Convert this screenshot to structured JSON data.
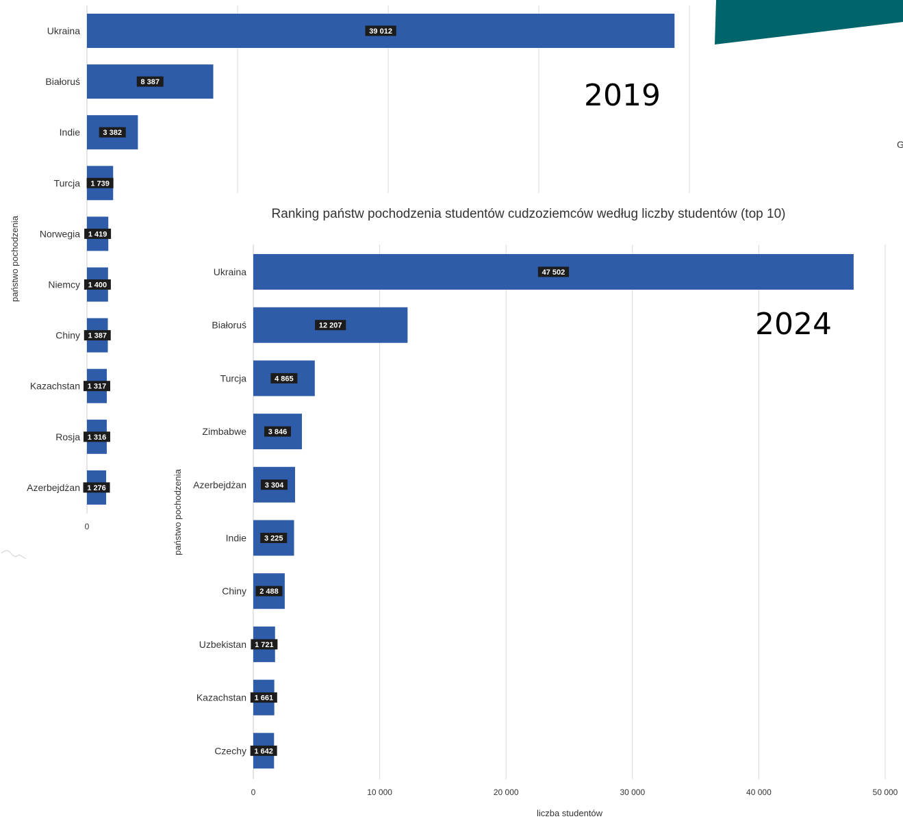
{
  "chart_data": [
    {
      "type": "bar",
      "orientation": "horizontal",
      "title": "",
      "year_label": "2019",
      "xlabel": "",
      "ylabel": "państwo pochodzenia",
      "categories": [
        "Ukraina",
        "Białoruś",
        "Indie",
        "Turcja",
        "Norwegia",
        "Niemcy",
        "Chiny",
        "Kazachstan",
        "Rosja",
        "Azerbejdżan"
      ],
      "values": [
        39012,
        8387,
        3382,
        1739,
        1419,
        1400,
        1387,
        1317,
        1316,
        1276
      ],
      "value_labels": [
        "39 012",
        "8 387",
        "3 382",
        "1 739",
        "1 419",
        "1 400",
        "1 387",
        "1 317",
        "1 316",
        "1 276"
      ],
      "xlim": [
        0,
        40000
      ],
      "x_ticks_visible": [
        "0"
      ],
      "grid": true,
      "bar_color": "#2e5ca8"
    },
    {
      "type": "bar",
      "orientation": "horizontal",
      "title": "Ranking państw pochodzenia studentów cudzoziemców według liczby studentów (top 10)",
      "year_label": "2024",
      "xlabel": "liczba studentów",
      "ylabel": "państwo pochodzenia",
      "categories": [
        "Ukraina",
        "Białoruś",
        "Turcja",
        "Zimbabwe",
        "Azerbejdżan",
        "Indie",
        "Chiny",
        "Uzbekistan",
        "Kazachstan",
        "Czechy"
      ],
      "values": [
        47502,
        12207,
        4865,
        3846,
        3304,
        3225,
        2488,
        1721,
        1661,
        1642
      ],
      "value_labels": [
        "47 502",
        "12 207",
        "4 865",
        "3 846",
        "3 304",
        "3 225",
        "2 488",
        "1 721",
        "1 661",
        "1 642"
      ],
      "xlim": [
        0,
        50000
      ],
      "x_ticks": [
        0,
        10000,
        20000,
        30000,
        40000,
        50000
      ],
      "x_tick_labels": [
        "0",
        "10 000",
        "20 000",
        "30 000",
        "40 000",
        "50 000"
      ],
      "grid": true,
      "bar_color": "#2e5ca8"
    }
  ],
  "decor": {
    "banner_color": "#00656b",
    "cut_letter": "G"
  }
}
